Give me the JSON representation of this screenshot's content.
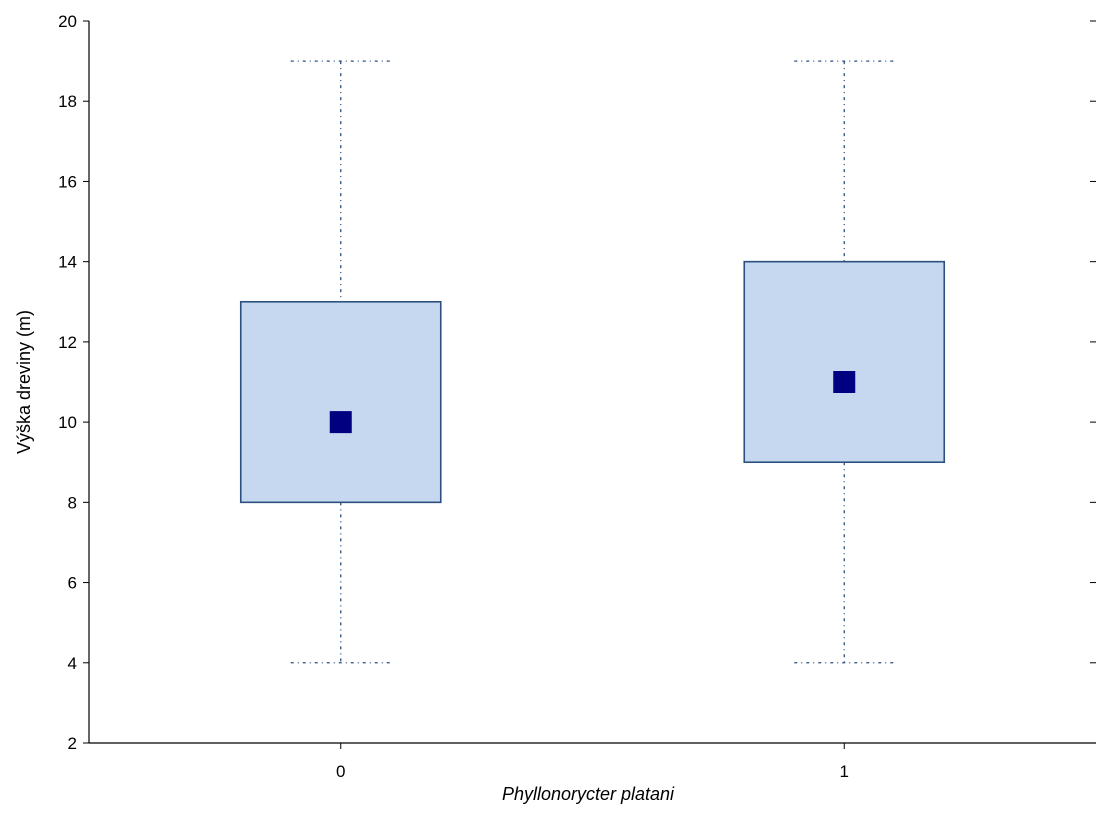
{
  "chart_data": {
    "type": "box",
    "title": "",
    "xlabel": "Phyllonorycter platani",
    "ylabel": "Výška dreviny (m)",
    "ylim": [
      2,
      20
    ],
    "yticks": [
      2,
      4,
      6,
      8,
      10,
      12,
      14,
      16,
      18,
      20
    ],
    "grid": false,
    "categories": [
      "0",
      "1"
    ],
    "series": [
      {
        "category": "0",
        "min": 4,
        "q1": 8,
        "median": 10,
        "q3": 13,
        "max": 19
      },
      {
        "category": "1",
        "min": 4,
        "q1": 9,
        "median": 11,
        "q3": 14,
        "max": 19
      }
    ],
    "colors": {
      "box_fill": "#c5d8f0",
      "box_stroke": "#2b4f7e",
      "whisker": "#2b4f7e",
      "median_marker": "#000080",
      "axis": "#000000"
    }
  }
}
